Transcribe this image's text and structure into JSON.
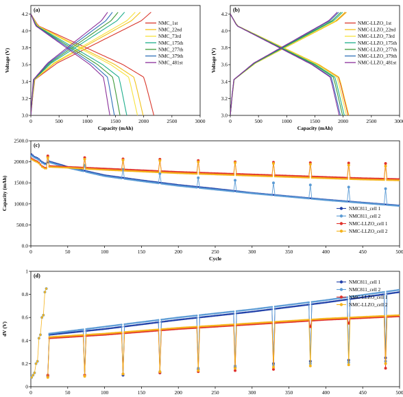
{
  "chart_data": [
    {
      "panel": "(a)",
      "type": "line",
      "xlabel": "Capacity (mAh)",
      "ylabel": "Voltage (V)",
      "xlim": [
        0,
        3000
      ],
      "ylim": [
        3.0,
        4.3
      ],
      "xticks": [
        "0",
        "500",
        "1000",
        "1500",
        "2000",
        "2500",
        "3000"
      ],
      "yticks": [
        "3.0",
        "3.2",
        "3.4",
        "3.6",
        "3.8",
        "4.0",
        "4.2"
      ],
      "legend_position": "middle-right",
      "series": [
        {
          "name": "NMC_1st",
          "color": "#d9362b",
          "capacity": 2180,
          "charge_cap": 2130
        },
        {
          "name": "NMC_22nd",
          "color": "#f2c21a",
          "capacity": 1990,
          "charge_cap": 1940
        },
        {
          "name": "NMC_73rd",
          "color": "#f7e23c",
          "capacity": 1890,
          "charge_cap": 1850
        },
        {
          "name": "NMC_175th",
          "color": "#1fae8c",
          "capacity": 1700,
          "charge_cap": 1660
        },
        {
          "name": "NMC_277th",
          "color": "#3f9a39",
          "capacity": 1580,
          "charge_cap": 1545
        },
        {
          "name": "NMC_379th",
          "color": "#2e6fb8",
          "capacity": 1480,
          "charge_cap": 1445
        },
        {
          "name": "NMC_481st",
          "color": "#8a2f9a",
          "capacity": 1400,
          "charge_cap": 1360
        }
      ]
    },
    {
      "panel": "(b)",
      "type": "line",
      "xlabel": "Capacity (mAh)",
      "ylabel": "Voltage (V)",
      "xlim": [
        0,
        3000
      ],
      "ylim": [
        3.0,
        4.3
      ],
      "xticks": [
        "0",
        "500",
        "1000",
        "1500",
        "2000",
        "2500",
        "3000"
      ],
      "yticks": [
        "3.0",
        "3.2",
        "3.4",
        "3.6",
        "3.8",
        "4.0",
        "4.2"
      ],
      "legend_position": "middle-right",
      "series": [
        {
          "name": "NMC-LLZO_1st",
          "color": "#d9362b",
          "capacity": 2090,
          "charge_cap": 2040
        },
        {
          "name": "NMC-LLZO_22nd",
          "color": "#f2c21a",
          "capacity": 2100,
          "charge_cap": 2060
        },
        {
          "name": "NMC-LLZO_73rd",
          "color": "#f7e23c",
          "capacity": 2060,
          "charge_cap": 2030
        },
        {
          "name": "NMC-LLZO_175th",
          "color": "#1fae8c",
          "capacity": 2020,
          "charge_cap": 1990
        },
        {
          "name": "NMC-LLZO_277th",
          "color": "#3f9a39",
          "capacity": 1990,
          "charge_cap": 1960
        },
        {
          "name": "NMC-LLZO_379th",
          "color": "#2e6fb8",
          "capacity": 1950,
          "charge_cap": 1920
        },
        {
          "name": "NMC-LLZO_481st",
          "color": "#8a2f9a",
          "capacity": 1930,
          "charge_cap": 1895
        }
      ]
    },
    {
      "panel": "(c)",
      "type": "scatter",
      "xlabel": "Cycle",
      "ylabel": "Capacity (mAh)",
      "xlim": [
        0,
        500
      ],
      "ylim": [
        0,
        2500
      ],
      "xticks": [
        "0",
        "50",
        "100",
        "150",
        "200",
        "250",
        "300",
        "350",
        "400",
        "450",
        "500"
      ],
      "yticks": [
        "0.0",
        "500.0",
        "1000.0",
        "1500.0",
        "2000.0",
        "2500.0"
      ],
      "legend_position": "bottom-right",
      "spike_cycles": [
        22,
        73,
        124,
        175,
        226,
        277,
        328,
        379,
        430,
        481
      ],
      "series": [
        {
          "name": "NMC811_cell 1",
          "color": "#1f3fa8",
          "x": [
            1,
            5,
            10,
            15,
            20,
            25,
            50,
            75,
            100,
            150,
            200,
            250,
            300,
            350,
            400,
            450,
            500
          ],
          "y": [
            2180,
            2120,
            2080,
            2000,
            1950,
            2010,
            1880,
            1780,
            1680,
            1560,
            1450,
            1360,
            1260,
            1180,
            1100,
            1030,
            960
          ]
        },
        {
          "name": "NMC811_cell 2",
          "color": "#5b9bd5",
          "x": [
            1,
            5,
            10,
            15,
            20,
            25,
            50,
            75,
            100,
            150,
            200,
            250,
            300,
            350,
            400,
            450,
            500
          ],
          "y": [
            2150,
            2100,
            2060,
            1980,
            1930,
            1990,
            1860,
            1760,
            1660,
            1540,
            1430,
            1340,
            1250,
            1170,
            1090,
            1020,
            950
          ],
          "spike_values": [
            2120,
            1920,
            1820,
            1720,
            1620,
            1560,
            1500,
            1450,
            1400,
            1360
          ]
        },
        {
          "name": "NMC-LLZO_cell 1",
          "color": "#e0312b",
          "x": [
            1,
            5,
            10,
            15,
            20,
            25,
            50,
            100,
            150,
            200,
            250,
            300,
            350,
            400,
            450,
            500
          ],
          "y": [
            2080,
            2040,
            2000,
            1900,
            1850,
            1900,
            1880,
            1840,
            1800,
            1760,
            1730,
            1700,
            1670,
            1640,
            1610,
            1590
          ],
          "spike_values": [
            2140,
            2100,
            2070,
            2060,
            2030,
            2000,
            1990,
            1980,
            1970,
            1960
          ]
        },
        {
          "name": "NMC-LLZO_cell 2",
          "color": "#f5b21a",
          "x": [
            1,
            5,
            10,
            15,
            20,
            25,
            50,
            100,
            150,
            200,
            250,
            300,
            350,
            400,
            450,
            500
          ],
          "y": [
            2060,
            2020,
            1980,
            1880,
            1830,
            1880,
            1860,
            1810,
            1770,
            1730,
            1700,
            1670,
            1640,
            1610,
            1580,
            1560
          ],
          "spike_values": [
            2100,
            2060,
            2040,
            2030,
            2000,
            1980,
            1960,
            1940,
            1920,
            1900
          ]
        }
      ]
    },
    {
      "panel": "(d)",
      "type": "scatter",
      "xlabel": "Cycle",
      "ylabel": "dV (V)",
      "xlim": [
        0,
        500
      ],
      "ylim": [
        0,
        1.0
      ],
      "xticks": [
        "0",
        "50",
        "100",
        "150",
        "200",
        "250",
        "300",
        "350",
        "400",
        "450",
        "500"
      ],
      "yticks": [
        "0",
        "0.2",
        "0.4",
        "0.6",
        "0.8",
        "1"
      ],
      "legend_position": "top-right",
      "spike_cycles": [
        22,
        73,
        124,
        175,
        226,
        277,
        328,
        379,
        430,
        481
      ],
      "early_points": {
        "x": [
          1,
          3,
          5,
          7,
          9,
          11,
          13,
          15,
          17,
          19,
          21
        ],
        "y": [
          0.08,
          0.1,
          0.12,
          0.2,
          0.22,
          0.42,
          0.45,
          0.6,
          0.62,
          0.82,
          0.85
        ]
      },
      "series": [
        {
          "name": "NMC811_cell 1",
          "color": "#1f3fa8",
          "x": [
            25,
            100,
            200,
            300,
            400,
            500
          ],
          "y": [
            0.45,
            0.5,
            0.58,
            0.65,
            0.73,
            0.82
          ],
          "dip_values": [
            0.09,
            0.1,
            0.1,
            0.12,
            0.15,
            0.17,
            0.2,
            0.22,
            0.23,
            0.25
          ]
        },
        {
          "name": "NMC811_cell 2",
          "color": "#5b9bd5",
          "x": [
            25,
            100,
            200,
            300,
            400,
            500
          ],
          "y": [
            0.46,
            0.52,
            0.6,
            0.67,
            0.75,
            0.84
          ],
          "dip_values": [
            0.1,
            0.1,
            0.11,
            0.13,
            0.16,
            0.18,
            0.19,
            0.2,
            0.21,
            0.22
          ]
        },
        {
          "name": "NMC-LLZO_cell 1",
          "color": "#e0312b",
          "x": [
            25,
            100,
            200,
            300,
            400,
            500
          ],
          "y": [
            0.42,
            0.45,
            0.5,
            0.54,
            0.58,
            0.61
          ],
          "dip_values": [
            0.1,
            0.1,
            0.11,
            0.12,
            0.13,
            0.14,
            0.15,
            0.52,
            0.55,
            0.16
          ]
        },
        {
          "name": "NMC-LLZO_cell 2",
          "color": "#f5b21a",
          "x": [
            25,
            100,
            200,
            300,
            400,
            500
          ],
          "y": [
            0.43,
            0.46,
            0.51,
            0.55,
            0.59,
            0.62
          ],
          "dip_values": [
            0.08,
            0.09,
            0.11,
            0.13,
            0.14,
            0.16,
            0.17,
            0.18,
            0.19,
            0.2
          ]
        }
      ]
    }
  ]
}
